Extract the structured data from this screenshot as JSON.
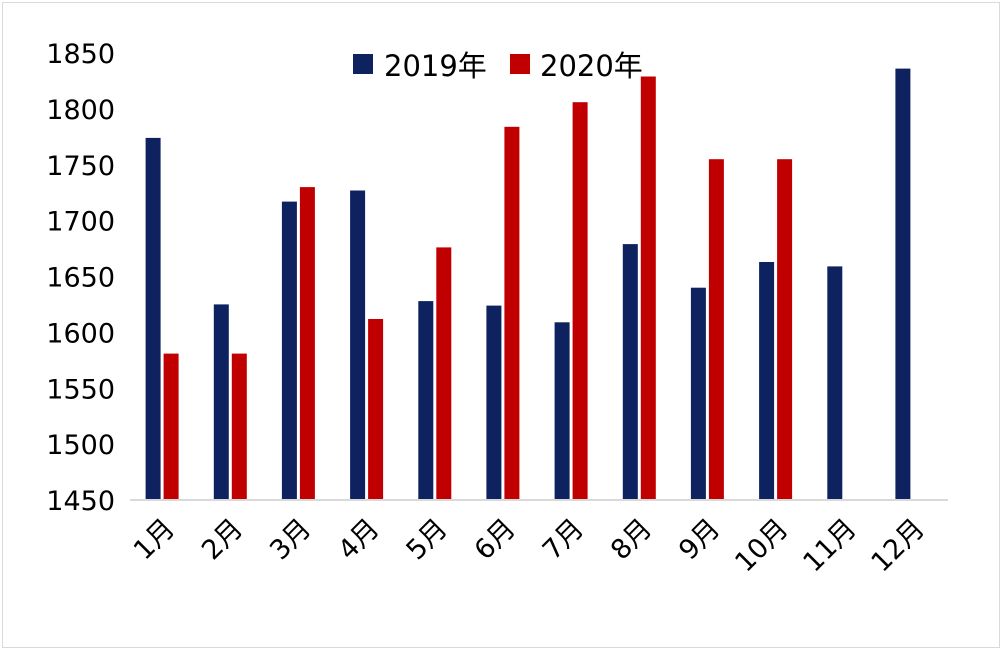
{
  "chart_data": {
    "type": "bar",
    "title": "",
    "xlabel": "",
    "ylabel": "",
    "categories": [
      "1月",
      "2月",
      "3月",
      "4月",
      "5月",
      "6月",
      "7月",
      "8月",
      "9月",
      "10月",
      "11月",
      "12月"
    ],
    "series": [
      {
        "name": "2019年",
        "color": "#0f2260",
        "values": [
          1774,
          1625,
          1717,
          1727,
          1628,
          1624,
          1609,
          1679,
          1640,
          1663,
          1659,
          1836
        ]
      },
      {
        "name": "2020年",
        "color": "#c00000",
        "values": [
          1581,
          1581,
          1730,
          1612,
          1676,
          1784,
          1806,
          1829,
          1755,
          1755,
          null,
          null
        ]
      }
    ],
    "ylim": [
      1450,
      1850
    ],
    "yticks": [
      1450,
      1500,
      1550,
      1600,
      1650,
      1700,
      1750,
      1800,
      1850
    ],
    "grid": false,
    "legend_position": "top-center"
  }
}
